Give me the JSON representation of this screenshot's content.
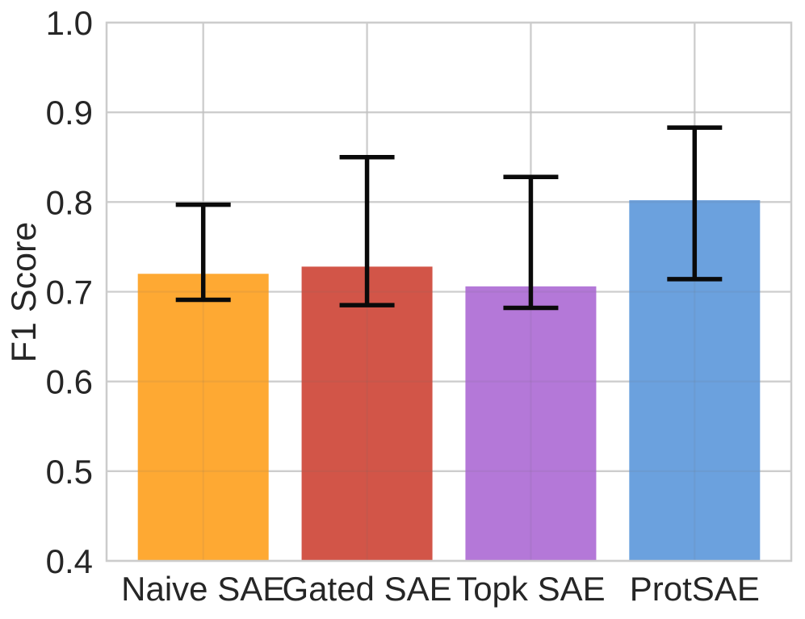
{
  "chart_data": {
    "type": "bar",
    "title": "",
    "xlabel": "",
    "ylabel": "F1 Score",
    "categories": [
      "Naive SAE",
      "Gated SAE",
      "Topk SAE",
      "ProtSAE"
    ],
    "values": [
      0.72,
      0.728,
      0.706,
      0.802
    ],
    "error_low": [
      0.691,
      0.685,
      0.682,
      0.714
    ],
    "error_high": [
      0.797,
      0.85,
      0.828,
      0.883
    ],
    "bar_colors": [
      "#FEA933",
      "#D25548",
      "#B478D8",
      "#6BA1DE"
    ],
    "errorbar_color": "#0a0a0a",
    "ylim": [
      0.4,
      1.0
    ],
    "yticks": [
      "0.4",
      "0.5",
      "0.6",
      "0.7",
      "0.8",
      "0.9",
      "1.0"
    ],
    "grid": true,
    "grid_color": "#d9d9d9",
    "axes_edge_color": "#cccccc",
    "tick_label_color": "#262626",
    "legend_position": "none"
  }
}
